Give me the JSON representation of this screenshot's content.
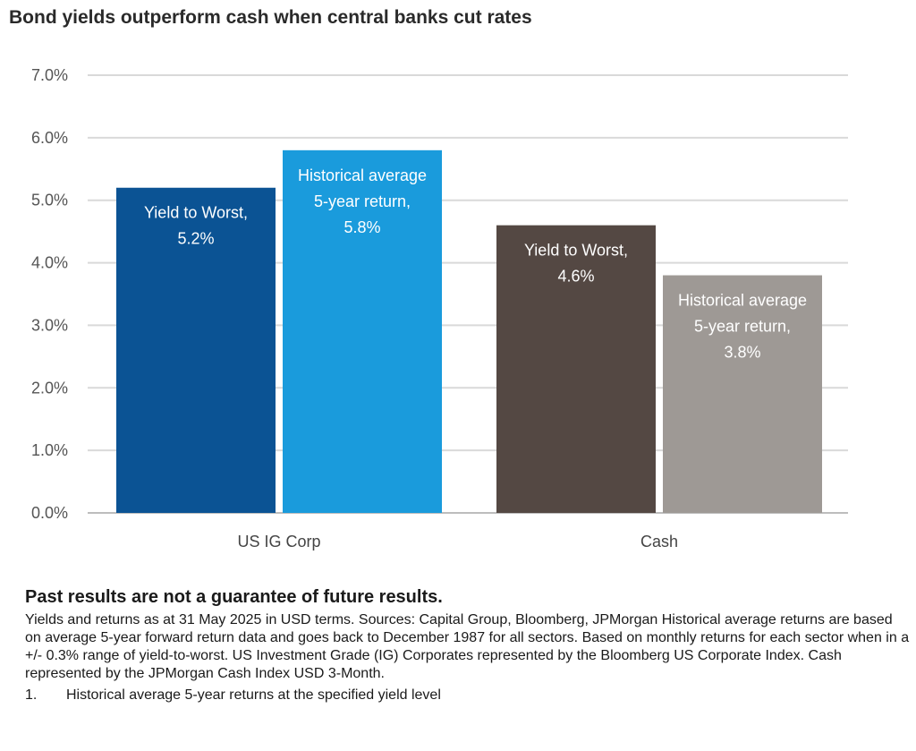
{
  "chart_data": {
    "type": "bar",
    "title": "Bond yields outperform cash when central banks cut rates",
    "categories": [
      "US IG Corp",
      "Cash"
    ],
    "ylim": [
      0,
      7
    ],
    "yticks": [
      "0.0%",
      "1.0%",
      "2.0%",
      "3.0%",
      "4.0%",
      "5.0%",
      "6.0%",
      "7.0%"
    ],
    "grid": true,
    "bars": [
      {
        "category": "US IG Corp",
        "value": 5.2,
        "color": "#0b5394",
        "label": [
          "Yield to Worst,",
          "5.2%"
        ]
      },
      {
        "category": "US IG Corp",
        "value": 5.8,
        "color": "#1a9bdc",
        "label": [
          "Historical average",
          "5-year return,",
          "5.8%"
        ]
      },
      {
        "category": "Cash",
        "value": 4.6,
        "color": "#544843",
        "label": [
          "Yield to Worst,",
          "4.6%"
        ]
      },
      {
        "category": "Cash",
        "value": 3.8,
        "color": "#9e9995",
        "label": [
          "Historical average",
          "5-year return,",
          "3.8%"
        ]
      }
    ]
  },
  "footer": {
    "disclaimer": "Past results are not a guarantee of future results.",
    "notes": "Yields and returns as at 31 May 2025 in USD terms. Sources: Capital Group, Bloomberg, JPMorgan Historical average returns are based on average 5-year forward return data and goes back to December 1987 for all sectors. Based on monthly returns for each sector when in a +/- 0.3% range of yield-to-worst. US Investment Grade (IG) Corporates represented by the Bloomberg US Corporate Index. Cash represented by the JPMorgan Cash Index USD 3-Month.",
    "footnote_number": "1.",
    "footnote_text": "Historical average 5-year returns at the specified yield level"
  }
}
